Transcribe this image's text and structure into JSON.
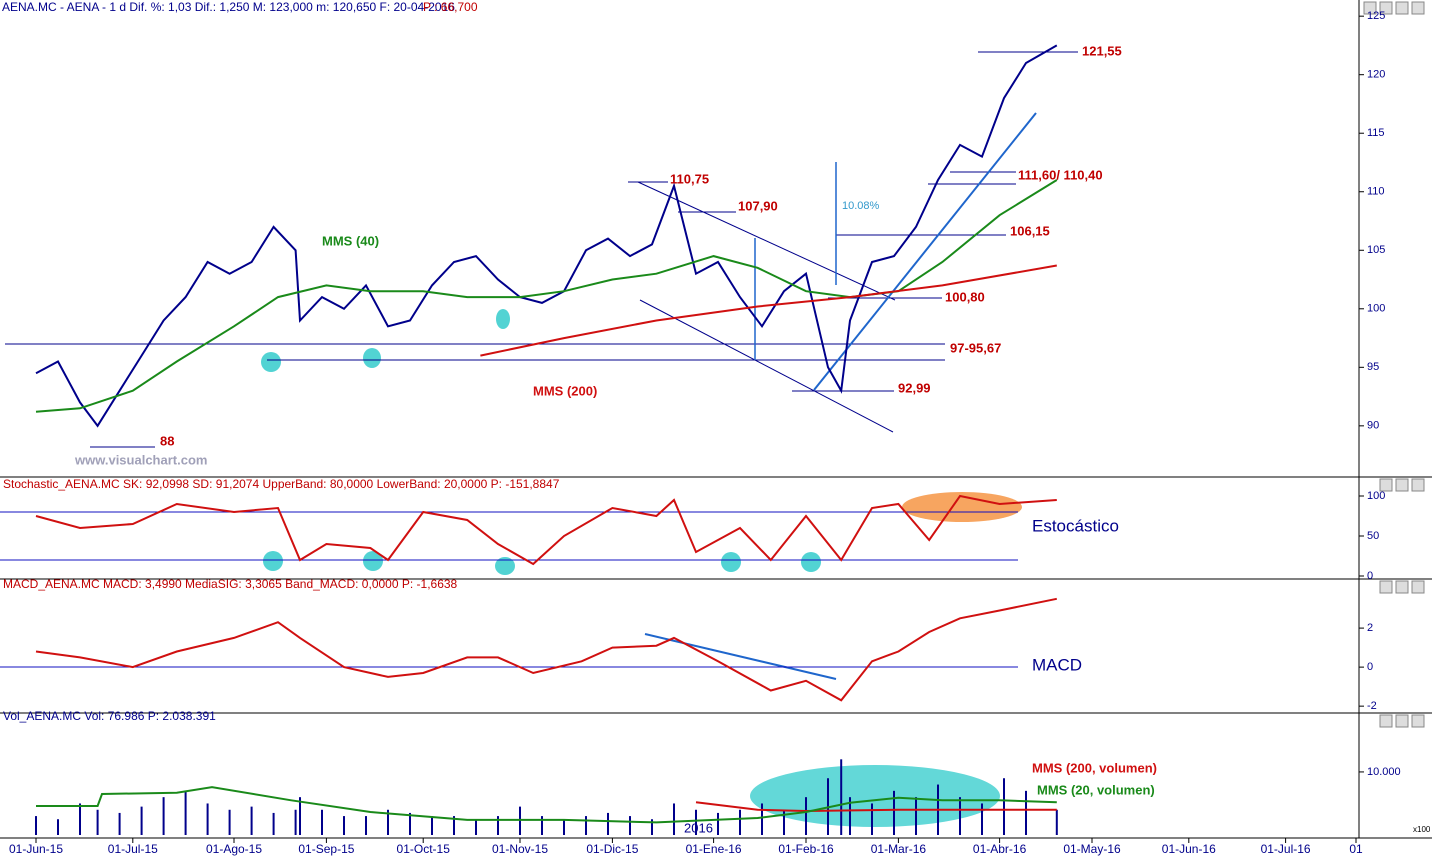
{
  "x_axis": {
    "ticks": [
      {
        "value": "2015-06-01",
        "label": "01-Jun-15"
      },
      {
        "value": "2015-07-01",
        "label": "01-Jul-15"
      },
      {
        "value": "2015-08-03",
        "label": "01-Ago-15"
      },
      {
        "value": "2015-09-01",
        "label": "01-Sep-15"
      },
      {
        "value": "2015-10-01",
        "label": "01-Oct-15"
      },
      {
        "value": "2015-11-02",
        "label": "01-Nov-15"
      },
      {
        "value": "2015-12-01",
        "label": "01-Dic-15"
      },
      {
        "value": "2016-01-01",
        "label": "01-Ene-16"
      },
      {
        "value": "2016-02-01",
        "label": "01-Feb-16"
      },
      {
        "value": "2016-03-01",
        "label": "01-Mar-16"
      },
      {
        "value": "2016-04-01",
        "label": "01-Abr-16"
      },
      {
        "value": "2016-05-02",
        "label": "01-May-16"
      },
      {
        "value": "2016-06-01",
        "label": "01-Jun-16"
      },
      {
        "value": "2016-07-01",
        "label": "01-Jul-16"
      },
      {
        "value": "2016-07-25",
        "label": "01"
      }
    ],
    "year_label": "2016"
  },
  "chart_data": [
    {
      "type": "line",
      "title": "AENA.MC - AENA - 1 d Dif. %: 1,03 Dif.: 1,250 M: 123,000 m: 120,650 F: 20-04-2016",
      "subtitle": "P : 66,700",
      "ylim": [
        85.8,
        125.1
      ],
      "yticks": [
        90,
        95,
        100,
        105,
        110,
        115,
        120,
        125
      ],
      "series": [
        {
          "color": "#00008b",
          "x": [
            "2015-06-01",
            "2015-06-08",
            "2015-06-15",
            "2015-06-19",
            "2015-06-26",
            "2015-07-03",
            "2015-07-10",
            "2015-07-17",
            "2015-07-24",
            "2015-07-31",
            "2015-08-07",
            "2015-08-14",
            "2015-08-21",
            "2015-08-24",
            "2015-08-31",
            "2015-09-07",
            "2015-09-14",
            "2015-09-21",
            "2015-09-28",
            "2015-10-05",
            "2015-10-12",
            "2015-10-19",
            "2015-10-26",
            "2015-11-02",
            "2015-11-09",
            "2015-11-16",
            "2015-11-23",
            "2015-11-30",
            "2015-12-07",
            "2015-12-14",
            "2015-12-21",
            "2015-12-28",
            "2016-01-04",
            "2016-01-11",
            "2016-01-18",
            "2016-01-25",
            "2016-02-01",
            "2016-02-08",
            "2016-02-11",
            "2016-02-15",
            "2016-02-22",
            "2016-02-29",
            "2016-03-07",
            "2016-03-14",
            "2016-03-21",
            "2016-03-28",
            "2016-04-04",
            "2016-04-11",
            "2016-04-20"
          ],
          "values": [
            94.5,
            95.5,
            92,
            90,
            93,
            96,
            99,
            101,
            104,
            103,
            104,
            107,
            105,
            99,
            101,
            100,
            102,
            98.5,
            99,
            102,
            104,
            104.5,
            102.5,
            101,
            100.5,
            101.5,
            105,
            106,
            104.5,
            105.5,
            110.5,
            103,
            104,
            101,
            98.5,
            101.5,
            103,
            95,
            93,
            99,
            104,
            104.5,
            107,
            111,
            114,
            113,
            118,
            121,
            122.5
          ]
        },
        {
          "name": "MMS (40)",
          "color": "#1a8a1a",
          "x": [
            "2015-06-01",
            "2015-06-15",
            "2015-07-01",
            "2015-07-15",
            "2015-08-01",
            "2015-08-15",
            "2015-09-01",
            "2015-09-15",
            "2015-10-01",
            "2015-10-15",
            "2015-11-01",
            "2015-11-15",
            "2015-12-01",
            "2015-12-15",
            "2016-01-01",
            "2016-01-15",
            "2016-02-01",
            "2016-02-15",
            "2016-03-01",
            "2016-03-15",
            "2016-04-01",
            "2016-04-20"
          ],
          "values": [
            91.2,
            91.5,
            93,
            95.5,
            98.5,
            101,
            102,
            101.5,
            101.5,
            101,
            101,
            101.5,
            102.5,
            103,
            104.5,
            103.5,
            101.5,
            101,
            101.5,
            104,
            108,
            111
          ]
        },
        {
          "name": "MMS (200)",
          "color": "#d01010",
          "x": [
            "2015-10-20",
            "2015-11-15",
            "2015-12-15",
            "2016-01-15",
            "2016-02-15",
            "2016-03-15",
            "2016-04-20"
          ],
          "values": [
            96,
            97.5,
            99,
            100.2,
            101,
            102,
            103.7
          ]
        }
      ],
      "annotations": [
        "121,55",
        "111,60/ 110,40",
        "110,75",
        "107,90",
        "106,15",
        "100,80",
        "97-95,67",
        "92,99",
        "88",
        "10.08%",
        "www.visualchart.com"
      ]
    },
    {
      "type": "line",
      "title": "Stochastic_AENA.MC SK: 92,0998 SD: 91,2074 UpperBand: 80,0000 LowerBand: 20,0000 P: -151,8847",
      "panel_label": "Estocástico",
      "ylim": [
        -2.5,
        107.5
      ],
      "yticks": [
        0,
        50,
        100
      ],
      "bands": [
        20,
        80
      ],
      "series": [
        {
          "color": "#d01010",
          "x": [
            "2015-06-01",
            "2015-06-15",
            "2015-07-01",
            "2015-07-15",
            "2015-08-01",
            "2015-08-15",
            "2015-08-24",
            "2015-09-01",
            "2015-09-15",
            "2015-09-21",
            "2015-10-01",
            "2015-10-15",
            "2015-10-26",
            "2015-11-05",
            "2015-11-15",
            "2015-12-01",
            "2015-12-15",
            "2015-12-21",
            "2015-12-28",
            "2016-01-11",
            "2016-01-20",
            "2016-02-01",
            "2016-02-11",
            "2016-02-22",
            "2016-03-01",
            "2016-03-10",
            "2016-03-20",
            "2016-04-01",
            "2016-04-20"
          ],
          "values": [
            75,
            60,
            65,
            90,
            80,
            85,
            20,
            40,
            35,
            20,
            80,
            70,
            40,
            15,
            50,
            85,
            75,
            95,
            30,
            60,
            20,
            75,
            20,
            85,
            90,
            45,
            100,
            90,
            95
          ]
        }
      ]
    },
    {
      "type": "line",
      "title": "MACD_AENA.MC MACD: 3,4990 MediaSIG: 3,3065 Band_MACD: 0,0000 P: -1,6638",
      "panel_label": "MACD",
      "ylim": [
        -2.3,
        3.85
      ],
      "yticks": [
        -2,
        0,
        2
      ],
      "series": [
        {
          "color": "#d01010",
          "x": [
            "2015-06-01",
            "2015-06-15",
            "2015-07-01",
            "2015-07-15",
            "2015-08-01",
            "2015-08-15",
            "2015-08-24",
            "2015-09-07",
            "2015-09-21",
            "2015-10-01",
            "2015-10-15",
            "2015-10-26",
            "2015-11-05",
            "2015-11-20",
            "2015-12-01",
            "2015-12-15",
            "2015-12-21",
            "2016-01-04",
            "2016-01-20",
            "2016-02-01",
            "2016-02-11",
            "2016-02-22",
            "2016-03-01",
            "2016-03-10",
            "2016-03-20",
            "2016-04-01",
            "2016-04-20"
          ],
          "values": [
            0.8,
            0.5,
            0,
            0.8,
            1.5,
            2.3,
            1.5,
            0,
            -0.5,
            -0.3,
            0.5,
            0.5,
            -0.3,
            0.3,
            1,
            1.1,
            1.5,
            0.3,
            -1.2,
            -0.7,
            -1.7,
            0.3,
            0.8,
            1.8,
            2.5,
            2.9,
            3.5
          ]
        }
      ]
    },
    {
      "type": "bar",
      "title": "Vol_AENA.MC Vol: 76.986 P: 2.038.391",
      "unit_label": "x100",
      "ylim": [
        0,
        17600
      ],
      "yticks": [
        {
          "value": 10000,
          "label": "10.000"
        }
      ],
      "color": "#00008b",
      "x": [
        "2015-06-01",
        "2015-06-08",
        "2015-06-15",
        "2015-06-19",
        "2015-06-26",
        "2015-07-03",
        "2015-07-10",
        "2015-07-17",
        "2015-07-24",
        "2015-07-31",
        "2015-08-07",
        "2015-08-14",
        "2015-08-21",
        "2015-08-24",
        "2015-08-31",
        "2015-09-07",
        "2015-09-14",
        "2015-09-21",
        "2015-09-28",
        "2015-10-05",
        "2015-10-12",
        "2015-10-19",
        "2015-10-26",
        "2015-11-02",
        "2015-11-09",
        "2015-11-16",
        "2015-11-23",
        "2015-11-30",
        "2015-12-07",
        "2015-12-14",
        "2015-12-21",
        "2015-12-28",
        "2016-01-04",
        "2016-01-11",
        "2016-01-18",
        "2016-01-25",
        "2016-02-01",
        "2016-02-08",
        "2016-02-11",
        "2016-02-15",
        "2016-02-22",
        "2016-02-29",
        "2016-03-07",
        "2016-03-14",
        "2016-03-21",
        "2016-03-28",
        "2016-04-04",
        "2016-04-11",
        "2016-04-20"
      ],
      "values": [
        3000,
        2500,
        5000,
        4000,
        3500,
        4500,
        6000,
        7000,
        5000,
        4000,
        4500,
        3500,
        4000,
        6000,
        4000,
        3000,
        3000,
        4000,
        3500,
        3000,
        3000,
        2500,
        3000,
        4500,
        3000,
        2500,
        3000,
        3500,
        3000,
        2500,
        5000,
        4000,
        3500,
        4000,
        5000,
        4000,
        6000,
        9000,
        12000,
        6000,
        5000,
        7000,
        6000,
        8000,
        6000,
        5000,
        9000,
        7000,
        4000
      ],
      "series": [
        {
          "name": "MMS (200, volumen)",
          "color": "#d01010",
          "x": [
            "2015-12-28",
            "2016-01-15",
            "2016-02-01",
            "2016-03-01",
            "2016-04-20"
          ],
          "values": [
            5200,
            4000,
            3800,
            4000,
            4000
          ]
        },
        {
          "name": "MMS (20, volumen)",
          "color": "#1a8a1a",
          "x": [
            "2015-06-01",
            "2015-06-19",
            "2015-06-22",
            "2015-07-15",
            "2015-07-25",
            "2015-08-20",
            "2015-09-15",
            "2015-10-15",
            "2015-11-15",
            "2015-12-15",
            "2016-01-15",
            "2016-02-01",
            "2016-02-15",
            "2016-03-01",
            "2016-03-15",
            "2016-04-01",
            "2016-04-20"
          ],
          "values": [
            4600,
            4600,
            6500,
            6700,
            7600,
            5500,
            3650,
            2400,
            2400,
            2000,
            2700,
            3650,
            5100,
            5900,
            5500,
            5500,
            5200
          ]
        }
      ]
    }
  ]
}
